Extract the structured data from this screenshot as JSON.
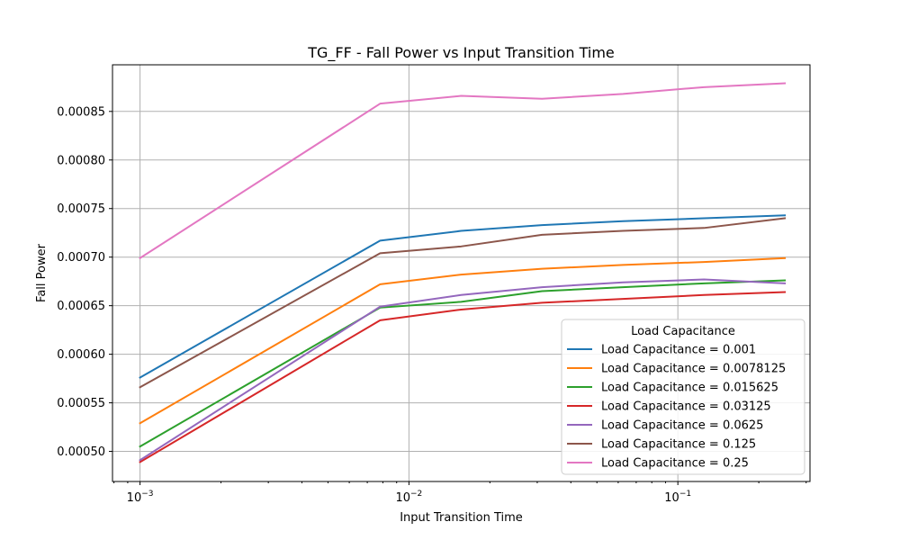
{
  "chart_data": {
    "type": "line",
    "title": "TG_FF - Fall Power vs Input Transition Time",
    "xlabel": "Input Transition Time",
    "ylabel": "Fall Power",
    "xscale": "log",
    "xlim": [
      0.00079,
      0.31
    ],
    "ylim": [
      0.000469,
      0.000898
    ],
    "x_ticks": [
      0.001,
      0.01,
      0.1
    ],
    "x_tick_labels": [
      {
        "base": "10",
        "exp": "−3"
      },
      {
        "base": "10",
        "exp": "−2"
      },
      {
        "base": "10",
        "exp": "−1"
      }
    ],
    "y_ticks": [
      0.0005,
      0.00055,
      0.0006,
      0.00065,
      0.0007,
      0.00075,
      0.0008,
      0.00085
    ],
    "y_tick_labels": [
      "0.00050",
      "0.00055",
      "0.00060",
      "0.00065",
      "0.00070",
      "0.00075",
      "0.00080",
      "0.00085"
    ],
    "grid": true,
    "legend": {
      "title": "Load Capacitance",
      "position": "lower-right"
    },
    "x": [
      0.001,
      0.0078125,
      0.015625,
      0.03125,
      0.0625,
      0.125,
      0.25
    ],
    "series": [
      {
        "name": "Load Capacitance = 0.001",
        "color": "#1f77b4",
        "values": [
          0.000576,
          0.000717,
          0.000727,
          0.000733,
          0.000737,
          0.00074,
          0.000743
        ]
      },
      {
        "name": "Load Capacitance = 0.0078125",
        "color": "#ff7f0e",
        "values": [
          0.000529,
          0.000672,
          0.000682,
          0.000688,
          0.000692,
          0.000695,
          0.000699
        ]
      },
      {
        "name": "Load Capacitance = 0.015625",
        "color": "#2ca02c",
        "values": [
          0.000505,
          0.000648,
          0.000654,
          0.000665,
          0.000669,
          0.000673,
          0.000676
        ]
      },
      {
        "name": "Load Capacitance = 0.03125",
        "color": "#d62728",
        "values": [
          0.000489,
          0.000635,
          0.000646,
          0.000653,
          0.000657,
          0.000661,
          0.000664
        ]
      },
      {
        "name": "Load Capacitance = 0.0625",
        "color": "#9467bd",
        "values": [
          0.000491,
          0.000649,
          0.000661,
          0.000669,
          0.000674,
          0.000677,
          0.000673
        ]
      },
      {
        "name": "Load Capacitance = 0.125",
        "color": "#8c564b",
        "values": [
          0.000566,
          0.000704,
          0.000711,
          0.000723,
          0.000727,
          0.00073,
          0.00074
        ]
      },
      {
        "name": "Load Capacitance = 0.25",
        "color": "#e377c2",
        "values": [
          0.000699,
          0.000858,
          0.000866,
          0.000863,
          0.000868,
          0.000875,
          0.000879
        ]
      }
    ]
  }
}
